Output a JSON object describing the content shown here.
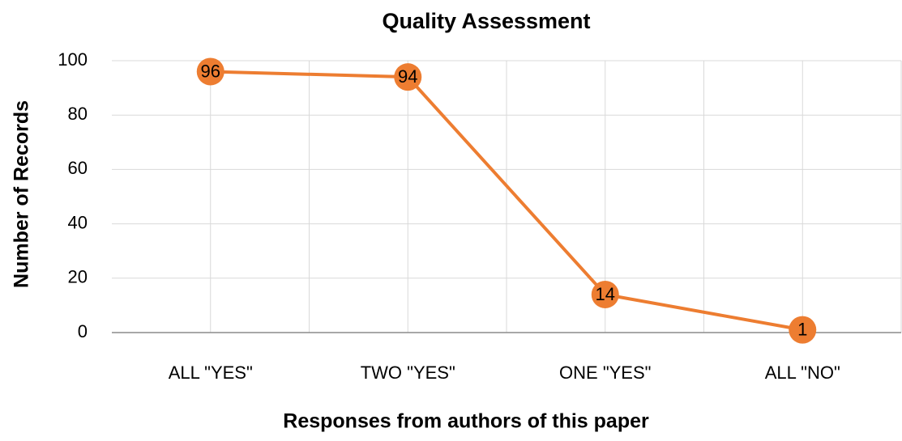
{
  "chart_data": {
    "type": "line",
    "title": "Quality Assessment",
    "x_label": "Responses from authors of this paper",
    "y_label": "Number of Records",
    "categories": [
      "ALL \"YES\"",
      "TWO \"YES\"",
      "ONE \"YES\"",
      "ALL \"NO\""
    ],
    "values": [
      96,
      94,
      14,
      1
    ],
    "color": "#ed7d31",
    "ylim": [
      0,
      100
    ],
    "yticks": [
      0,
      20,
      40,
      60,
      80,
      100
    ],
    "grid": true
  }
}
